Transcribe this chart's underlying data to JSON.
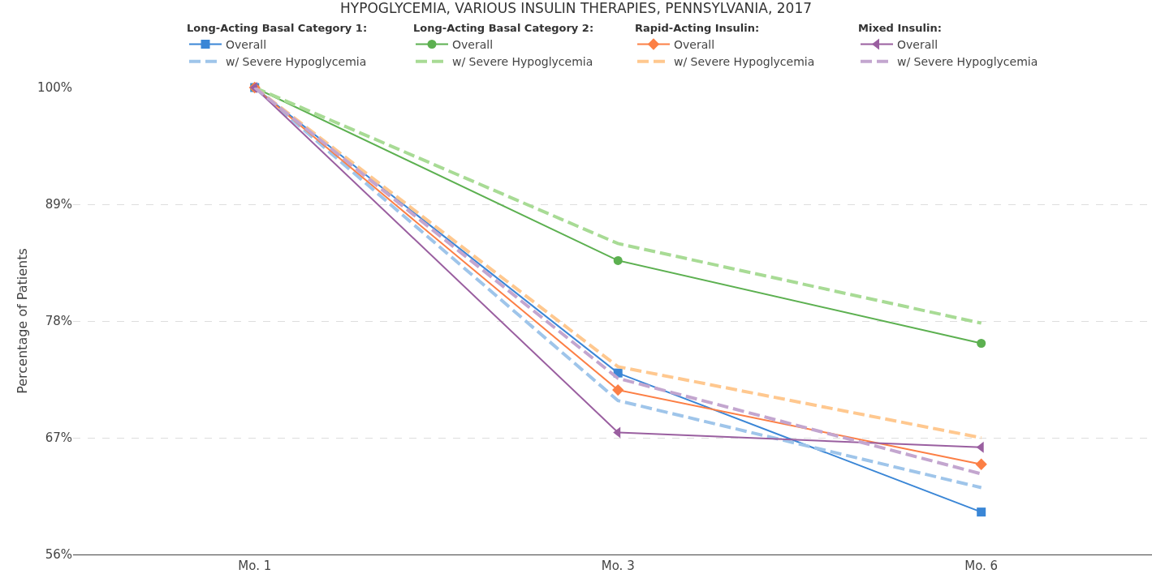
{
  "chart_data": {
    "type": "line",
    "title": "HYPOGLYCEMIA, VARIOUS INSULIN THERAPIES, PENNSYLVANIA, 2017",
    "ylabel": "Percentage of Patients",
    "categories": [
      "Mo. 1",
      "Mo. 3",
      "Mo. 6"
    ],
    "legend_title": [
      "Long-Acting Basal Category 1:",
      "Long-Acting Basal Category 2:",
      "Rapid-Acting Insulin:",
      "Mixed Insulin:"
    ],
    "series": [
      {
        "name": "Overall",
        "color": "#3a86d6",
        "marker": "square",
        "line_style": "solid",
        "values": [
          100,
          73.1,
          60.0
        ]
      },
      {
        "name": "w/ Severe Hypoglycemia",
        "color": "#9fc5ea",
        "marker": "none",
        "line_style": "dashed",
        "values": [
          100,
          70.5,
          62.3
        ]
      },
      {
        "name": "Overall",
        "color": "#5cb050",
        "marker": "circle",
        "line_style": "solid",
        "values": [
          100,
          83.7,
          75.9
        ]
      },
      {
        "name": "w/ Severe Hypoglycemia",
        "color": "#a8db95",
        "marker": "none",
        "line_style": "dashed",
        "values": [
          100,
          85.3,
          77.8
        ]
      },
      {
        "name": "Overall",
        "color": "#fc7f45",
        "marker": "diamond",
        "line_style": "solid",
        "values": [
          100,
          71.5,
          64.5
        ]
      },
      {
        "name": "w/ Severe Hypoglycemia",
        "color": "#ffc88f",
        "marker": "none",
        "line_style": "dashed",
        "values": [
          100,
          73.7,
          67.0
        ]
      },
      {
        "name": "Overall",
        "color": "#9a5fa0",
        "marker": "triangle",
        "line_style": "solid",
        "values": [
          100,
          67.5,
          66.1
        ]
      },
      {
        "name": "w/ Severe Hypoglycemia",
        "color": "#c3a6cf",
        "marker": "none",
        "line_style": "dashed",
        "values": [
          100,
          72.6,
          63.6
        ]
      }
    ],
    "ylim": [
      56,
      100
    ],
    "yticks": [
      {
        "value": 56,
        "label": "56%"
      },
      {
        "value": 67,
        "label": "67%"
      },
      {
        "value": 78,
        "label": "78%"
      },
      {
        "value": 89,
        "label": "89%"
      },
      {
        "value": 100,
        "label": "100%"
      }
    ],
    "grid": "y",
    "legend": "top"
  }
}
